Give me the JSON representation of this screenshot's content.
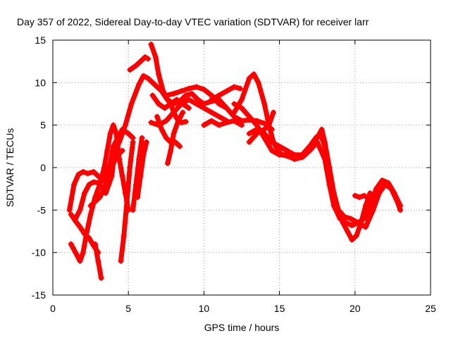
{
  "chart_data": {
    "type": "scatter",
    "title": "Day 357 of 2022, Sidereal Day-to-day VTEC variation (SDTVAR) for receiver larr",
    "xlabel": "GPS time / hours",
    "ylabel": "SDTVAR / TECUs",
    "xlim": [
      0,
      25
    ],
    "ylim": [
      -15,
      15
    ],
    "xticks": [
      0,
      5,
      10,
      15,
      20,
      25
    ],
    "yticks": [
      -15,
      -10,
      -5,
      0,
      5,
      10,
      15
    ],
    "grid": true,
    "marker": "plus",
    "color": "#ff0000",
    "series": [
      {
        "points": [
          [
            1.2,
            -5.5
          ],
          [
            1.5,
            -6.3
          ],
          [
            1.8,
            -7.0
          ],
          [
            2.1,
            -7.8
          ],
          [
            2.4,
            -8.3
          ],
          [
            2.7,
            -9.2
          ],
          [
            3.0,
            -10.0
          ]
        ]
      },
      {
        "points": [
          [
            1.1,
            -5.0
          ],
          [
            1.4,
            -2.0
          ],
          [
            1.7,
            -0.8
          ],
          [
            2.0,
            -0.5
          ],
          [
            2.3,
            -0.7
          ],
          [
            2.7,
            -0.5
          ],
          [
            3.0,
            -1.0
          ],
          [
            3.3,
            -1.5
          ],
          [
            3.5,
            -1.0
          ],
          [
            3.7,
            0.0
          ],
          [
            4.0,
            1.5
          ],
          [
            4.4,
            3.0
          ],
          [
            4.8,
            5.0
          ],
          [
            5.2,
            7.5
          ],
          [
            5.7,
            9.8
          ],
          [
            6.0,
            10.8
          ],
          [
            6.3,
            10.5
          ],
          [
            6.6,
            10.0
          ],
          [
            6.9,
            9.5
          ],
          [
            7.2,
            9.0
          ],
          [
            7.5,
            8.2
          ],
          [
            7.8,
            7.5
          ],
          [
            8.0,
            6.5
          ],
          [
            8.2,
            5.8
          ],
          [
            8.5,
            5.3
          ],
          [
            8.8,
            5.4
          ]
        ]
      },
      {
        "points": [
          [
            1.2,
            -9.0
          ],
          [
            1.5,
            -10.0
          ],
          [
            1.8,
            -11.0
          ],
          [
            2.0,
            -10.0
          ],
          [
            2.2,
            -8.0
          ],
          [
            2.5,
            -5.5
          ],
          [
            2.8,
            -3.5
          ],
          [
            3.1,
            -2.0
          ],
          [
            3.4,
            0.0
          ],
          [
            3.6,
            2.0
          ],
          [
            3.8,
            4.0
          ],
          [
            4.0,
            5.0
          ],
          [
            4.2,
            4.0
          ],
          [
            4.4,
            1.0
          ],
          [
            4.6,
            -1.0
          ],
          [
            4.8,
            -3.0
          ],
          [
            5.0,
            -5.0
          ]
        ]
      },
      {
        "points": [
          [
            1.5,
            -6.0
          ],
          [
            1.8,
            -5.0
          ],
          [
            2.1,
            -3.0
          ],
          [
            2.4,
            -2.0
          ],
          [
            2.7,
            -1.7
          ],
          [
            3.0,
            -1.8
          ],
          [
            3.3,
            -2.5
          ],
          [
            3.5,
            -3.0
          ],
          [
            3.7,
            -2.0
          ],
          [
            3.9,
            -1.0
          ],
          [
            4.0,
            0.5
          ],
          [
            4.3,
            1.5
          ],
          [
            4.6,
            2.0
          ]
        ]
      },
      {
        "points": [
          [
            2.5,
            -4.5
          ],
          [
            2.8,
            -4.0
          ],
          [
            3.1,
            -3.5
          ],
          [
            3.4,
            -2.5
          ],
          [
            3.7,
            -0.5
          ],
          [
            4.0,
            2.5
          ],
          [
            4.3,
            3.5
          ],
          [
            4.6,
            4.5
          ],
          [
            5.0,
            4.0
          ],
          [
            5.3,
            3.5
          ]
        ]
      },
      {
        "points": [
          [
            2.8,
            -9.0
          ],
          [
            3.0,
            -11.0
          ],
          [
            3.2,
            -13.0
          ]
        ]
      },
      {
        "points": [
          [
            4.5,
            -11.0
          ],
          [
            4.7,
            -8.0
          ],
          [
            4.9,
            -4.0
          ],
          [
            5.1,
            0.0
          ],
          [
            5.3,
            3.0
          ]
        ]
      },
      {
        "points": [
          [
            5.3,
            -5.0
          ],
          [
            5.5,
            -2.0
          ],
          [
            5.7,
            1.0
          ],
          [
            5.9,
            3.5
          ]
        ]
      },
      {
        "points": [
          [
            5.6,
            -3.5
          ],
          [
            5.8,
            -1.0
          ],
          [
            6.0,
            1.5
          ],
          [
            6.2,
            3.0
          ]
        ]
      },
      {
        "points": [
          [
            5.1,
            11.5
          ],
          [
            5.5,
            12.0
          ],
          [
            5.8,
            12.5
          ],
          [
            6.1,
            13.0
          ],
          [
            6.3,
            12.8
          ]
        ]
      },
      {
        "points": [
          [
            6.5,
            14.5
          ],
          [
            6.8,
            13.0
          ],
          [
            7.0,
            11.0
          ],
          [
            7.3,
            9.0
          ],
          [
            7.6,
            8.0
          ],
          [
            8.0,
            7.5
          ],
          [
            8.4,
            7.8
          ],
          [
            8.8,
            8.5
          ],
          [
            9.2,
            8.7
          ],
          [
            9.6,
            8.0
          ],
          [
            10.0,
            7.5
          ],
          [
            10.5,
            7.8
          ],
          [
            11.0,
            8.0
          ],
          [
            11.5,
            7.0
          ],
          [
            12.0,
            6.0
          ],
          [
            12.5,
            5.5
          ],
          [
            13.0,
            5.6
          ],
          [
            13.5,
            5.5
          ],
          [
            14.0,
            5.2
          ],
          [
            14.5,
            4.5
          ]
        ]
      },
      {
        "points": [
          [
            6.5,
            5.3
          ],
          [
            7.0,
            5.0
          ],
          [
            7.5,
            5.5
          ],
          [
            8.0,
            6.5
          ],
          [
            8.5,
            7.5
          ],
          [
            9.0,
            8.0
          ],
          [
            9.5,
            7.5
          ],
          [
            10.0,
            7.0
          ],
          [
            10.5,
            6.5
          ],
          [
            11.0,
            6.0
          ],
          [
            11.5,
            5.5
          ]
        ]
      },
      {
        "points": [
          [
            6.6,
            8.5
          ],
          [
            7.0,
            7.5
          ],
          [
            7.4,
            7.0
          ],
          [
            7.8,
            7.5
          ],
          [
            8.2,
            8.0
          ],
          [
            8.6,
            7.5
          ],
          [
            9.0,
            7.0
          ]
        ]
      },
      {
        "points": [
          [
            7.6,
            0.5
          ],
          [
            7.8,
            2.0
          ],
          [
            8.0,
            4.0
          ],
          [
            8.3,
            5.5
          ],
          [
            8.6,
            6.5
          ]
        ]
      },
      {
        "points": [
          [
            6.9,
            6.0
          ],
          [
            7.2,
            4.5
          ],
          [
            7.5,
            3.5
          ],
          [
            7.8,
            3.0
          ],
          [
            8.1,
            3.0
          ],
          [
            8.4,
            2.5
          ]
        ]
      },
      {
        "points": [
          [
            7.5,
            8.5
          ],
          [
            8.0,
            8.7
          ],
          [
            8.5,
            9.0
          ],
          [
            9.0,
            9.3
          ],
          [
            9.5,
            9.5
          ],
          [
            10.0,
            9.2
          ],
          [
            10.5,
            8.5
          ],
          [
            11.0,
            7.5
          ],
          [
            11.5,
            7.0
          ]
        ]
      },
      {
        "points": [
          [
            10.0,
            5.0
          ],
          [
            10.5,
            5.5
          ],
          [
            11.0,
            5.0
          ],
          [
            11.5,
            5.3
          ],
          [
            12.0,
            5.5
          ],
          [
            12.5,
            5.0
          ]
        ]
      },
      {
        "points": [
          [
            10.5,
            8.0
          ],
          [
            11.0,
            8.5
          ],
          [
            11.5,
            9.0
          ],
          [
            12.0,
            9.5
          ],
          [
            12.4,
            9.3
          ]
        ]
      },
      {
        "points": [
          [
            12.0,
            6.5
          ],
          [
            12.5,
            8.0
          ],
          [
            13.0,
            10.5
          ],
          [
            13.3,
            11.0
          ],
          [
            13.6,
            10.0
          ],
          [
            14.0,
            7.5
          ],
          [
            14.3,
            5.0
          ],
          [
            14.6,
            3.0
          ],
          [
            14.9,
            2.0
          ],
          [
            15.2,
            1.5
          ],
          [
            15.6,
            1.3
          ],
          [
            16.0,
            1.0
          ],
          [
            16.5,
            1.5
          ],
          [
            17.0,
            2.5
          ],
          [
            17.4,
            3.5
          ],
          [
            17.7,
            4.0
          ],
          [
            18.0,
            2.5
          ],
          [
            18.3,
            0.0
          ],
          [
            18.6,
            -3.0
          ],
          [
            18.9,
            -5.0
          ],
          [
            19.2,
            -6.5
          ],
          [
            19.5,
            -7.5
          ],
          [
            19.8,
            -8.5
          ],
          [
            20.1,
            -8.0
          ],
          [
            20.4,
            -6.5
          ],
          [
            20.7,
            -4.5
          ],
          [
            21.0,
            -3.0
          ]
        ]
      },
      {
        "points": [
          [
            12.0,
            7.5
          ],
          [
            12.5,
            7.0
          ],
          [
            13.0,
            6.0
          ],
          [
            13.5,
            5.0
          ],
          [
            14.0,
            3.5
          ],
          [
            14.5,
            2.0
          ],
          [
            15.0,
            1.5
          ],
          [
            15.5,
            1.5
          ],
          [
            16.0,
            1.0
          ],
          [
            16.5,
            1.2
          ],
          [
            17.0,
            2.0
          ],
          [
            17.5,
            3.0
          ],
          [
            18.0,
            1.0
          ],
          [
            18.3,
            -2.0
          ],
          [
            18.6,
            -4.5
          ],
          [
            19.0,
            -6.0
          ],
          [
            19.4,
            -6.5
          ],
          [
            19.8,
            -6.8
          ],
          [
            20.2,
            -6.5
          ],
          [
            20.6,
            -6.0
          ],
          [
            21.0,
            -4.5
          ],
          [
            21.4,
            -2.5
          ],
          [
            21.8,
            -1.5
          ],
          [
            22.2,
            -1.8
          ],
          [
            22.6,
            -3.0
          ],
          [
            23.0,
            -4.5
          ]
        ]
      },
      {
        "points": [
          [
            13.0,
            4.0
          ],
          [
            13.5,
            4.5
          ],
          [
            14.0,
            4.0
          ],
          [
            14.5,
            3.0
          ],
          [
            15.0,
            2.5
          ],
          [
            15.5,
            2.0
          ],
          [
            16.0,
            1.5
          ],
          [
            16.5,
            1.5
          ],
          [
            17.0,
            2.5
          ],
          [
            17.5,
            3.5
          ],
          [
            17.8,
            4.5
          ],
          [
            18.0,
            3.0
          ],
          [
            18.3,
            0.0
          ],
          [
            18.6,
            -3.5
          ],
          [
            18.9,
            -5.0
          ],
          [
            19.3,
            -5.8
          ],
          [
            19.7,
            -6.0
          ],
          [
            20.2,
            -6.5
          ],
          [
            20.7,
            -7.0
          ],
          [
            21.2,
            -5.0
          ],
          [
            21.6,
            -3.0
          ],
          [
            22.0,
            -2.0
          ],
          [
            22.4,
            -2.5
          ],
          [
            22.8,
            -4.0
          ],
          [
            23.0,
            -5.0
          ]
        ]
      },
      {
        "points": [
          [
            13.0,
            3.0
          ],
          [
            13.5,
            4.0
          ],
          [
            14.0,
            4.5
          ],
          [
            14.3,
            5.0
          ],
          [
            14.6,
            6.5
          ]
        ]
      },
      {
        "points": [
          [
            20.0,
            -3.3
          ],
          [
            20.3,
            -3.5
          ],
          [
            20.6,
            -3.3
          ],
          [
            20.9,
            -3.6
          ]
        ]
      }
    ]
  }
}
